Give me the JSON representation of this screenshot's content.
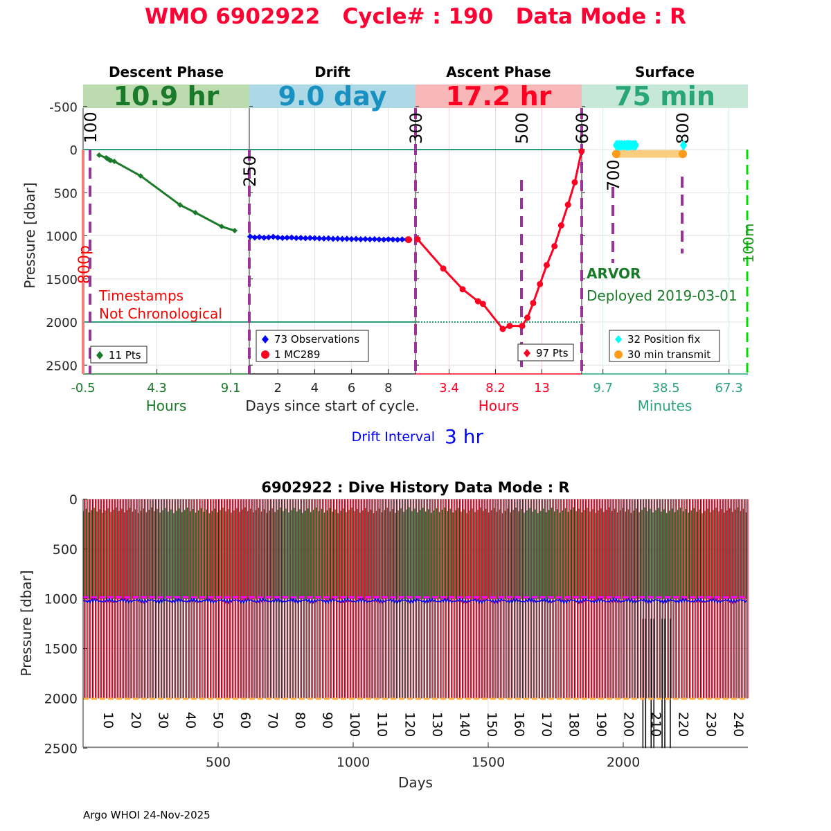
{
  "title": "WMO 6902922   Cycle# : 190   Data Mode : R",
  "colors": {
    "title": "#ff0033",
    "descent": "#1a7a2a",
    "drift": "#0000ff",
    "ascent": "#ff0022",
    "surface": "#2aa57a",
    "mc": "#993399",
    "band_descent": "#bcdcb0",
    "band_drift": "#add8e6",
    "band_ascent": "#f8b8b8",
    "band_surface": "#c5e8d8"
  },
  "chart_data": [
    {
      "type": "line",
      "title": "WMO 6902922   Cycle# : 190   Data Mode : R",
      "ylabel": "Pressure [dbar]",
      "ylim": [
        -750,
        2600
      ],
      "y_reversed": true,
      "yticks": [
        "-500",
        "0",
        "500",
        "1000",
        "1500",
        "2000",
        "2500"
      ],
      "ytick_values": [
        -500,
        0,
        500,
        1000,
        1500,
        2000,
        2500
      ],
      "phases": [
        {
          "name": "Descent Phase",
          "duration": "10.9 hr",
          "xlabel": "Hours",
          "xticks": [
            "-0.5",
            "4.3",
            "9.1"
          ],
          "xtick_values": [
            -0.5,
            4.3,
            9.1
          ]
        },
        {
          "name": "Drift",
          "duration": "9.0 day",
          "xlabel": "Days since start of cycle.",
          "xticks": [
            "2",
            "4",
            "6",
            "8"
          ],
          "xtick_values": [
            2,
            4,
            6,
            8
          ]
        },
        {
          "name": "Ascent Phase",
          "duration": "17.2 hr",
          "xlabel": "Hours",
          "xticks": [
            "3.4",
            "8.2",
            "13"
          ],
          "xtick_values": [
            3.4,
            8.2,
            13
          ]
        },
        {
          "name": "Surface",
          "duration": "75 min",
          "xlabel": "Minutes",
          "xticks": [
            "9.7",
            "38.5",
            "67.3"
          ],
          "xtick_values": [
            9.7,
            38.5,
            67.3
          ]
        }
      ],
      "descent": {
        "hours": [
          0.54,
          1.0,
          1.08,
          1.21,
          1.3,
          1.53,
          3.24,
          5.81,
          6.8,
          8.51,
          9.36
        ],
        "pressure": [
          64,
          95,
          104,
          120,
          125,
          137,
          305,
          643,
          731,
          892,
          940
        ]
      },
      "drift": {
        "days_start": 0.5,
        "days_step": 0.25,
        "pressure": [
          1010,
          1020,
          1015,
          1022,
          1018,
          1012,
          1020,
          1025,
          1022,
          1020,
          1026,
          1024,
          1028,
          1025,
          1027,
          1030,
          1032,
          1029,
          1035,
          1033,
          1036,
          1034,
          1038,
          1036,
          1040,
          1038,
          1041,
          1039,
          1042,
          1044,
          1040,
          1043,
          1045,
          1042,
          1044
        ]
      },
      "mc289": {
        "day": 9.1,
        "pressure": 1045
      },
      "ascent": {
        "hours": [
          0.14,
          2.8,
          4.8,
          6.4,
          6.9,
          8.95,
          9.67,
          10.96,
          11.5,
          12.1,
          12.8,
          13.5,
          14.3,
          15.0,
          15.7,
          16.4,
          17.1
        ],
        "pressure": [
          1040,
          1380,
          1620,
          1760,
          1790,
          2080,
          2045,
          2045,
          1950,
          1780,
          1560,
          1340,
          1120,
          880,
          640,
          380,
          20
        ]
      },
      "surface": {
        "position_fix_minutes": [
          15.8,
          16.5,
          17.2,
          18,
          18.8,
          19.5,
          20.3,
          21,
          21.8,
          22.5,
          23.3,
          24,
          24.6,
          46.5
        ],
        "position_fix_pressure": -50,
        "transmit_minutes": [
          15.8,
          46.2
        ],
        "transmit_pressure": 50
      },
      "reference_lines": {
        "surface_pressure": 0,
        "profile_pressure": 2000
      },
      "mc_labels": [
        "100",
        "250",
        "300",
        "500",
        "600",
        "700",
        "800"
      ],
      "side_labels": {
        "left": "800p",
        "right": "100m"
      },
      "annotations": {
        "timestamps_1": "Timestamps",
        "timestamps_2": "Not Chronological",
        "float_type": "ARVOR",
        "deployed": "Deployed 2019-03-01",
        "drift_interval_label": "Drift Interval",
        "drift_interval_value": "3 hr"
      },
      "legends": {
        "descent": "11 Pts",
        "drift_obs": "73 Observations",
        "drift_mc": "1 MC289",
        "ascent": "97 Pts",
        "surface_fix": "32 Position fix",
        "surface_tx": "30 min transmit"
      }
    },
    {
      "type": "bar",
      "title": "6902922 : Dive History      Data Mode : R",
      "xlabel": "Days",
      "ylabel": "Pressure [dbar]",
      "xlim": [
        0,
        2460
      ],
      "ylim": [
        0,
        2500
      ],
      "y_reversed": true,
      "xticks": [
        500,
        1000,
        1500,
        2000
      ],
      "yticks": [
        0,
        500,
        1000,
        1500,
        2000,
        2500
      ],
      "cycles": 244,
      "first_cycle_day": -5.9,
      "cycle_interval_days": 10.14,
      "descent_top_pressure": 80,
      "park_pressure": 1000,
      "drift_pressure": 1020,
      "profile_pressure": 2000,
      "target_park_line": 985,
      "target_profile_line": 2005,
      "cycle_labels": [
        10,
        20,
        30,
        40,
        50,
        60,
        70,
        80,
        90,
        100,
        110,
        120,
        130,
        140,
        150,
        160,
        170,
        180,
        190,
        200,
        210,
        220,
        230,
        240
      ],
      "anomalous_cycles": [
        205,
        206,
        208,
        209,
        212,
        213,
        215
      ]
    }
  ],
  "footer": "Argo WHOI 24-Nov-2025"
}
